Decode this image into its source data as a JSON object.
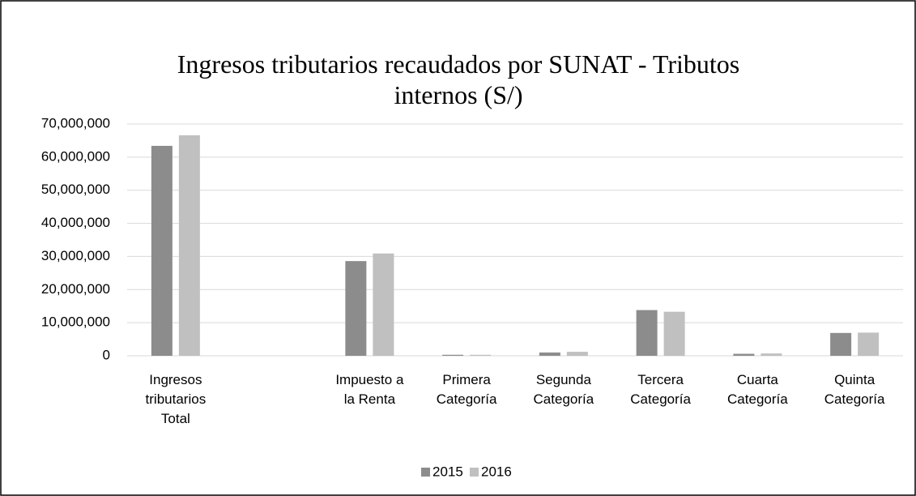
{
  "chart_data": {
    "type": "bar",
    "title": "Ingresos tributarios recaudados por  SUNAT - Tributos internos (S/)",
    "categories": [
      "Ingresos tributarios Total",
      null,
      "Impuesto a la Renta",
      "Primera Categoría",
      "Segunda Categoría",
      "Tercera Categoría",
      "Cuarta Categoría",
      "Quinta Categoría"
    ],
    "series": [
      {
        "name": "2015",
        "color": "#8c8c8c",
        "values": [
          63400000,
          null,
          28600000,
          300000,
          1000000,
          13800000,
          600000,
          6900000
        ]
      },
      {
        "name": "2016",
        "color": "#c0c0c0",
        "values": [
          66600000,
          null,
          30900000,
          300000,
          1200000,
          13300000,
          700000,
          7000000
        ]
      }
    ],
    "ylim": [
      0,
      70000000
    ],
    "yticks": [
      0,
      {
        "value": 10000000,
        "label": "10,000,000"
      },
      {
        "value": 20000000,
        "label": "20,000,000"
      },
      {
        "value": 30000000,
        "label": "30,000,000"
      },
      {
        "value": 40000000,
        "label": "40,000,000"
      },
      {
        "value": 50000000,
        "label": "50,000,000"
      },
      {
        "value": 60000000,
        "label": "60,000,000"
      },
      {
        "value": 70000000,
        "label": "70,000,000"
      }
    ],
    "grid": true,
    "legend": "bottom"
  }
}
